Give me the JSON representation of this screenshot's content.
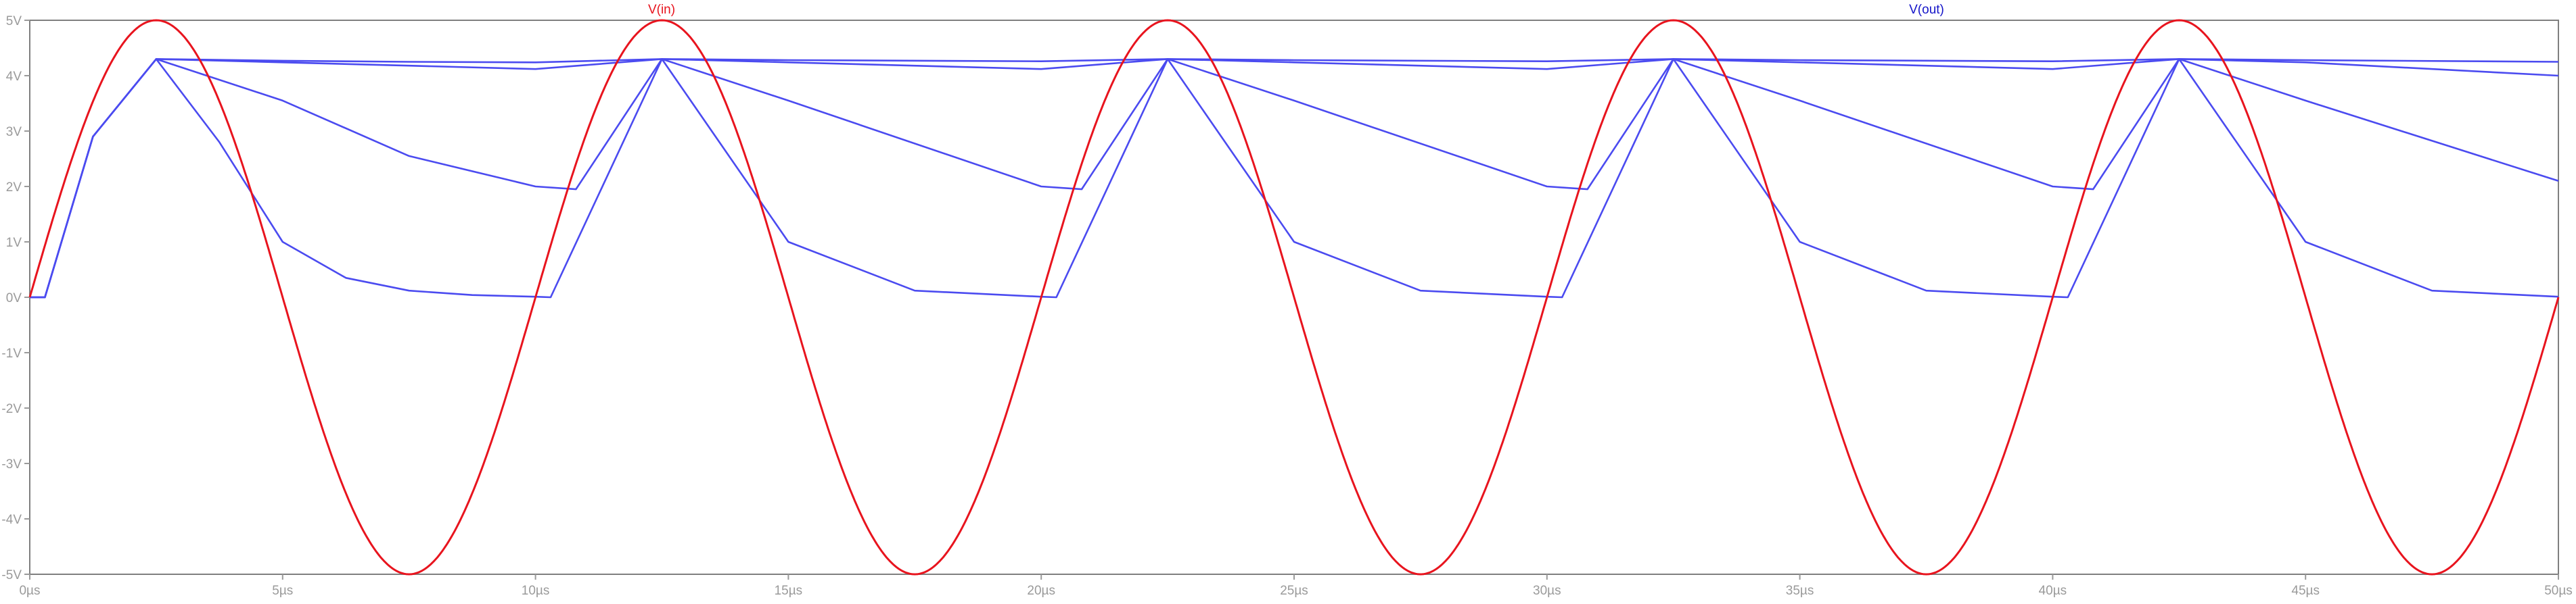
{
  "chart_data": {
    "type": "line",
    "title": "",
    "xlabel": "",
    "ylabel": "",
    "xlim": [
      0,
      50
    ],
    "ylim": [
      -5,
      5
    ],
    "grid": false,
    "x_unit": "µs",
    "y_unit": "V",
    "x_ticks": [
      "0µs",
      "5µs",
      "10µs",
      "15µs",
      "20µs",
      "25µs",
      "30µs",
      "35µs",
      "40µs",
      "45µs",
      "50µs"
    ],
    "y_ticks": [
      "5V",
      "4V",
      "3V",
      "2V",
      "1V",
      "0V",
      "-1V",
      "-2V",
      "-3V",
      "-4V",
      "-5V"
    ],
    "legend": [
      {
        "label": "V(in)",
        "color": "#e8141e"
      },
      {
        "label": "V(out)",
        "color": "#1414c8"
      }
    ],
    "colors": {
      "vin": "#e8141e",
      "vout": "#4b4bf0",
      "axis": "#9a9a9a",
      "frame": "#7f7f7f"
    },
    "series": [
      {
        "name": "V(in)",
        "color": "#e8141e",
        "amplitude": 5,
        "period": 10,
        "x": [
          0,
          1.25,
          2.5,
          3.75,
          5,
          6.25,
          7.5,
          8.75,
          10,
          12.5,
          15,
          17.5,
          20,
          22.5,
          25,
          27.5,
          30,
          32.5,
          35,
          37.5,
          40,
          42.5,
          45,
          47.5,
          50
        ],
        "values": [
          0,
          3.54,
          5,
          3.54,
          0,
          -3.54,
          -5,
          -3.54,
          0,
          5,
          0,
          -5,
          0,
          5,
          0,
          -5,
          0,
          5,
          0,
          -5,
          0,
          5,
          0,
          -5,
          0
        ]
      },
      {
        "name": "V(out)",
        "color": "#4b4bf0",
        "x": [
          0,
          0.3,
          1.25,
          2.5,
          5,
          7.5,
          10,
          12.5,
          15,
          20,
          22.5,
          25,
          30,
          32.5,
          35,
          40,
          42.5,
          45,
          50
        ],
        "values": [
          0,
          0,
          2.9,
          4.3,
          4.27,
          4.25,
          4.24,
          4.3,
          4.28,
          4.26,
          4.3,
          4.28,
          4.26,
          4.3,
          4.28,
          4.26,
          4.3,
          4.28,
          4.25
        ]
      },
      {
        "name": "V(out)",
        "color": "#4b4bf0",
        "x": [
          0,
          0.3,
          1.25,
          2.5,
          5,
          7.5,
          10,
          12.5,
          15,
          20,
          22.5,
          25,
          30,
          32.5,
          35,
          40,
          42.5,
          45,
          50
        ],
        "values": [
          0,
          0,
          2.9,
          4.3,
          4.24,
          4.18,
          4.12,
          4.3,
          4.24,
          4.12,
          4.3,
          4.24,
          4.12,
          4.3,
          4.24,
          4.12,
          4.3,
          4.24,
          4.0
        ]
      },
      {
        "name": "V(out)",
        "color": "#4b4bf0",
        "x": [
          0,
          0.3,
          1.25,
          2.5,
          5,
          7.5,
          10,
          10.8,
          12.5,
          15,
          20,
          20.8,
          22.5,
          25,
          30,
          30.8,
          32.5,
          35,
          40,
          40.8,
          42.5,
          45,
          50
        ],
        "values": [
          0,
          0,
          2.9,
          4.3,
          3.55,
          2.55,
          2.0,
          1.95,
          4.3,
          3.55,
          2.0,
          1.95,
          4.3,
          3.55,
          2.0,
          1.95,
          4.3,
          3.55,
          2.0,
          1.95,
          4.3,
          3.55,
          2.1
        ]
      },
      {
        "name": "V(out)",
        "color": "#4b4bf0",
        "x": [
          0,
          0.3,
          1.25,
          2.5,
          3.75,
          5,
          6.25,
          7.5,
          8.75,
          10,
          10.3,
          12.5,
          15,
          17.5,
          20,
          20.3,
          22.5,
          25,
          27.5,
          30,
          30.3,
          32.5,
          35,
          37.5,
          40,
          40.3,
          42.5,
          45,
          47.5,
          50
        ],
        "values": [
          0,
          0,
          2.9,
          4.3,
          2.8,
          1.0,
          0.35,
          0.12,
          0.04,
          0.01,
          0,
          4.3,
          1.0,
          0.12,
          0.01,
          0,
          4.3,
          1.0,
          0.12,
          0.01,
          0,
          4.3,
          1.0,
          0.12,
          0.01,
          0,
          4.3,
          1.0,
          0.12,
          0.01
        ]
      }
    ]
  }
}
